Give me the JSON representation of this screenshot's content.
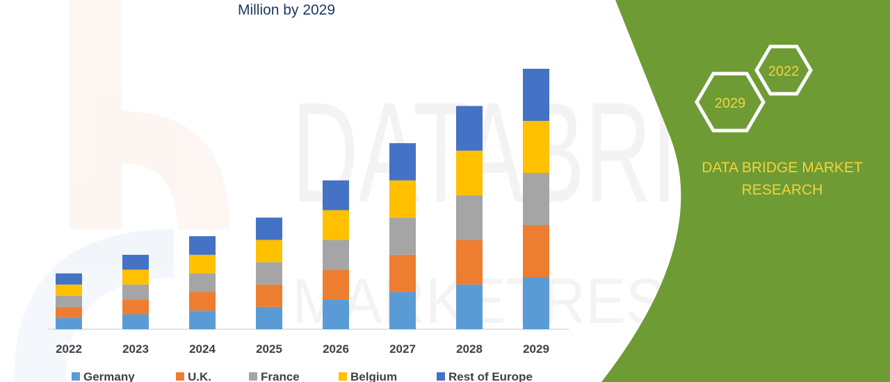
{
  "chart_data": {
    "type": "bar",
    "stacked": true,
    "title": "Million by 2029",
    "categories": [
      "2022",
      "2023",
      "2024",
      "2025",
      "2026",
      "2027",
      "2028",
      "2029"
    ],
    "series": [
      {
        "name": "Germany",
        "color": "#5b9bd5",
        "values": [
          15,
          20,
          25,
          30,
          40,
          50,
          60,
          70
        ]
      },
      {
        "name": "U.K.",
        "color": "#ed7d31",
        "values": [
          15,
          20,
          25,
          30,
          40,
          50,
          60,
          70
        ]
      },
      {
        "name": "France",
        "color": "#a5a5a5",
        "values": [
          15,
          20,
          25,
          30,
          40,
          50,
          60,
          70
        ]
      },
      {
        "name": "Belgium",
        "color": "#ffc000",
        "values": [
          15,
          20,
          25,
          30,
          40,
          50,
          60,
          70
        ]
      },
      {
        "name": "Rest of Europe",
        "color": "#4472c4",
        "values": [
          15,
          20,
          25,
          30,
          40,
          50,
          60,
          70
        ]
      }
    ],
    "ylim": [
      0,
      350
    ],
    "grid": false,
    "legend_position": "bottom",
    "xlabel": "",
    "ylabel": ""
  },
  "brand": {
    "name_line1": "DATA BRIDGE MARKET",
    "name_line2": "RESEARCH",
    "hex_left": "2029",
    "hex_right": "2022",
    "panel_color": "#6f9b35",
    "text_color": "#f2d43a"
  },
  "watermark": {
    "line1": "DATABRIDGE",
    "line2": "MARKETRESEARCH"
  }
}
